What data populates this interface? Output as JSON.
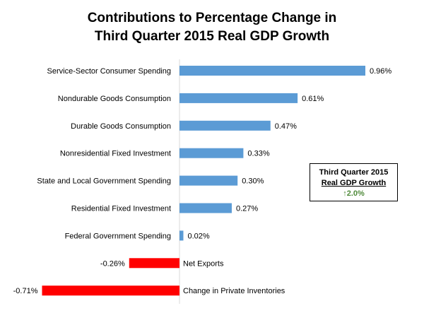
{
  "chart_data": {
    "type": "bar",
    "orientation": "horizontal",
    "title_line1": "Contributions  to Percentage Change in",
    "title_line2": "Third Quarter 2015 Real GDP Growth",
    "unit_suffix": "%",
    "categories": [
      "Service-Sector Consumer Spending",
      "Nondurable Goods Consumption",
      "Durable Goods Consumption",
      "Nonresidential Fixed Investment",
      "State and Local Government Spending",
      "Residential Fixed Investment",
      "Federal Government Spending",
      "Net Exports",
      "Change in Private Inventories"
    ],
    "values": [
      0.96,
      0.61,
      0.47,
      0.33,
      0.3,
      0.27,
      0.02,
      -0.26,
      -0.71
    ],
    "value_labels": [
      "0.96%",
      "0.61%",
      "0.47%",
      "0.33%",
      "0.30%",
      "0.27%",
      "0.02%",
      "-0.26%",
      "-0.71%"
    ],
    "colors": {
      "positive": "#5b9bd5",
      "negative": "#ff0000",
      "axis": "#d9d9d9"
    },
    "xlim": [
      -0.71,
      0.96
    ],
    "grid": false,
    "legend": "none"
  },
  "infobox": {
    "line1": "Third Quarter 2015",
    "line2": "Real GDP Growth",
    "arrow": "↑",
    "value": "2.0%",
    "color": "#4f8a3a"
  }
}
